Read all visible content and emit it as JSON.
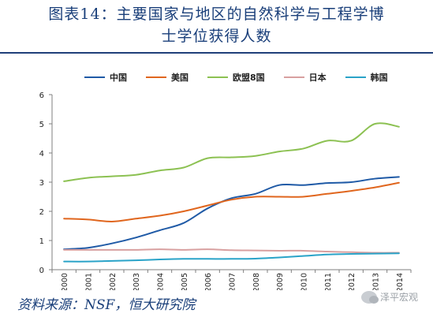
{
  "title": {
    "line1": "图表14：主要国家与地区的自然科学与工程学博",
    "line2": "士学位获得人数"
  },
  "source": "资料来源：NSF，恒大研究院",
  "watermark": "泽平宏观",
  "chart_data": {
    "type": "line",
    "categories": [
      "2000",
      "2001",
      "2002",
      "2003",
      "2004",
      "2005",
      "2006",
      "2007",
      "2008",
      "2009",
      "2010",
      "2011",
      "2012",
      "2013",
      "2014"
    ],
    "ylim": [
      0,
      6
    ],
    "yticks": [
      0,
      1,
      2,
      3,
      4,
      5,
      6
    ],
    "grid": false,
    "legend_position": "top",
    "series": [
      {
        "name": "中国",
        "color": "#1f5aa6",
        "values": [
          0.7,
          0.75,
          0.9,
          1.1,
          1.35,
          1.6,
          2.1,
          2.45,
          2.6,
          2.9,
          2.9,
          2.97,
          3.0,
          3.12,
          3.18
        ]
      },
      {
        "name": "美国",
        "color": "#e0661e",
        "values": [
          1.75,
          1.72,
          1.65,
          1.75,
          1.85,
          2.0,
          2.2,
          2.4,
          2.5,
          2.5,
          2.5,
          2.6,
          2.7,
          2.82,
          2.98
        ]
      },
      {
        "name": "欧盟8国",
        "color": "#8cc152",
        "values": [
          3.03,
          3.15,
          3.2,
          3.25,
          3.4,
          3.5,
          3.82,
          3.85,
          3.9,
          4.05,
          4.15,
          4.42,
          4.42,
          5.0,
          4.9
        ]
      },
      {
        "name": "日本",
        "color": "#d8a0a0",
        "values": [
          0.68,
          0.68,
          0.68,
          0.68,
          0.7,
          0.68,
          0.7,
          0.67,
          0.66,
          0.65,
          0.65,
          0.62,
          0.6,
          0.58,
          0.58
        ]
      },
      {
        "name": "韩国",
        "color": "#2aa3c8",
        "values": [
          0.28,
          0.28,
          0.3,
          0.32,
          0.35,
          0.37,
          0.37,
          0.37,
          0.38,
          0.42,
          0.47,
          0.52,
          0.54,
          0.55,
          0.56
        ]
      }
    ]
  }
}
